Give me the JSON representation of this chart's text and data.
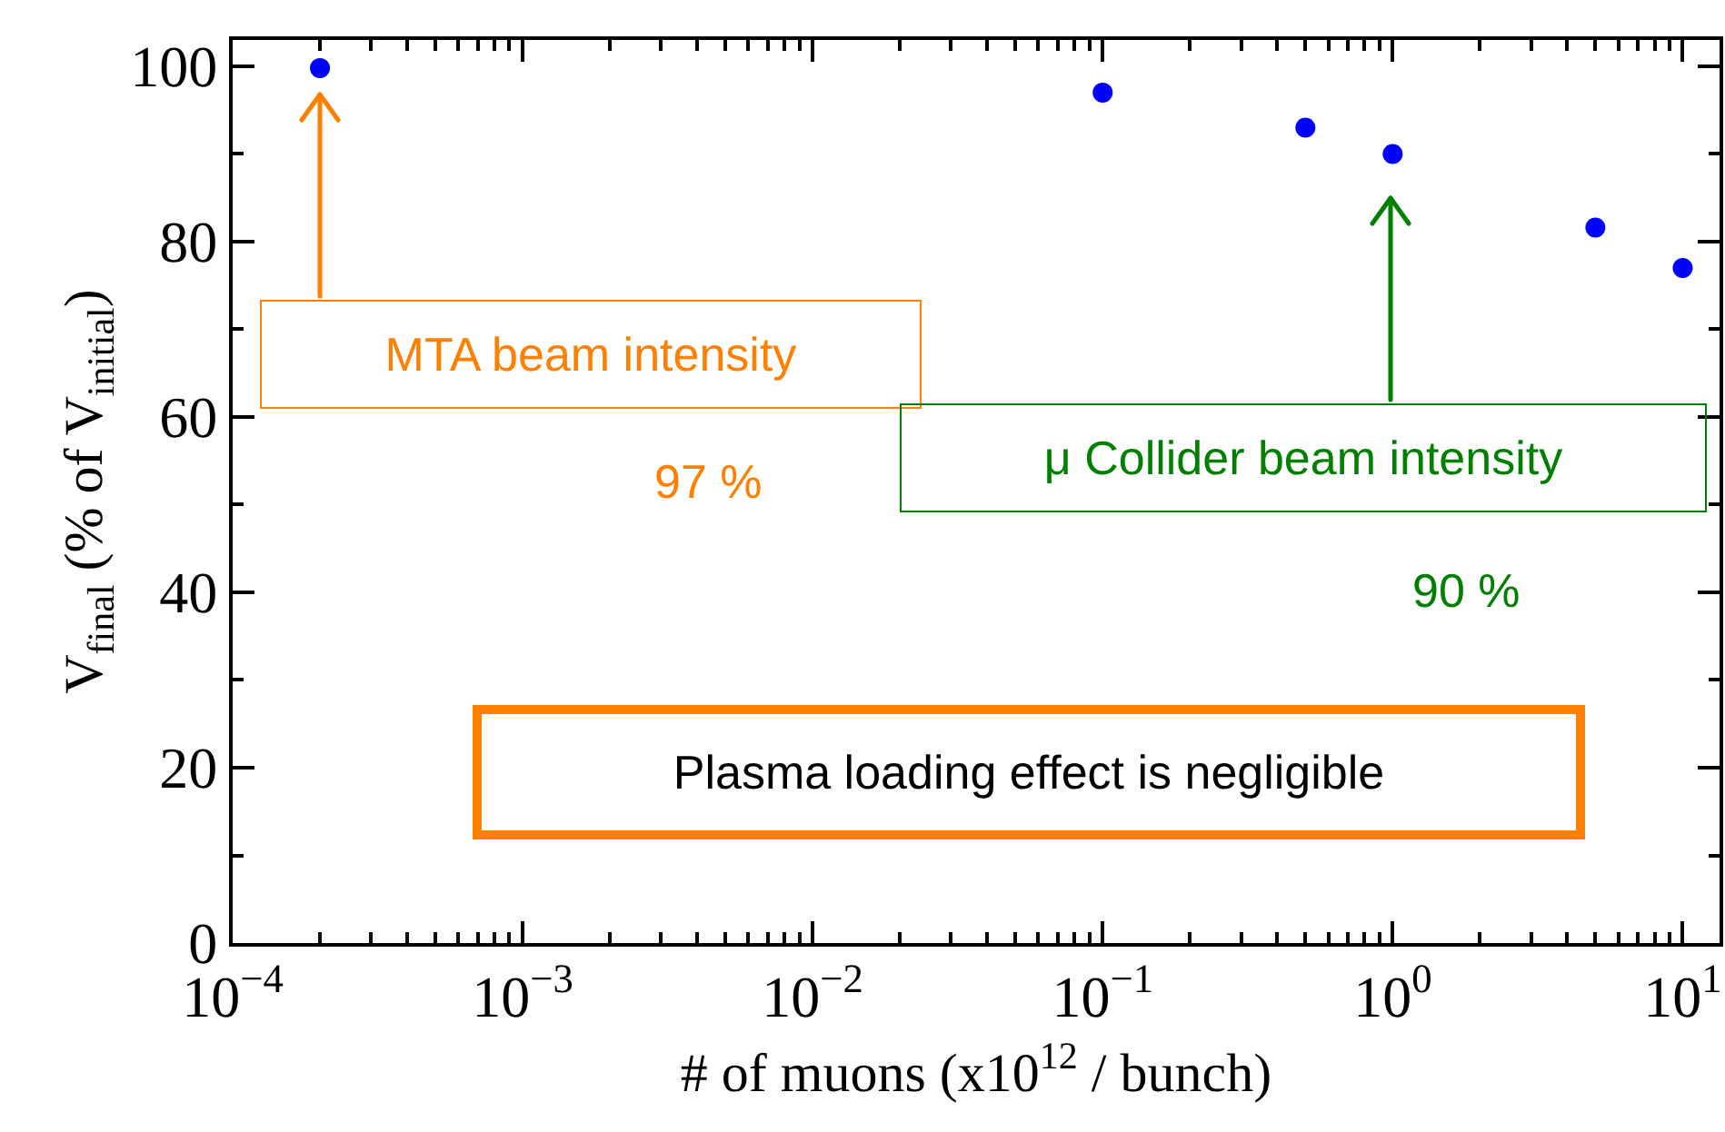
{
  "chart_data": {
    "type": "scatter",
    "xlabel": "# of muons (x10$^{12}$ / bunch)",
    "ylabel": "V$_{final}$ (% of V$_{initial}$)",
    "x": [
      0.0002,
      0.1,
      0.5,
      1,
      5,
      10
    ],
    "series": [
      {
        "color": "#0000ff",
        "values": [
          99.8,
          97,
          93,
          90,
          81.6,
          77
        ]
      }
    ],
    "log": "x",
    "xlim": [
      0.0001,
      13.4
    ],
    "ylim": [
      0,
      103
    ],
    "xticks": [
      {
        "value": 0.0001,
        "label": "10$^{−4}$"
      },
      {
        "value": 0.001,
        "label": "10$^{−3}$"
      },
      {
        "value": 0.01,
        "label": "10$^{−2}$"
      },
      {
        "value": 0.1,
        "label": "10$^{−1}$"
      },
      {
        "value": 1,
        "label": "10$^{0}$"
      },
      {
        "value": 10,
        "label": "10$^{1}$"
      }
    ],
    "yticks": [
      0,
      20,
      40,
      60,
      80,
      100
    ],
    "grid": false,
    "marker": "circle",
    "annotations": [
      "MTA beam intensity",
      "97 %",
      "μ Collider beam intensity",
      "90 %",
      "Plasma loading effect is negligible"
    ]
  }
}
